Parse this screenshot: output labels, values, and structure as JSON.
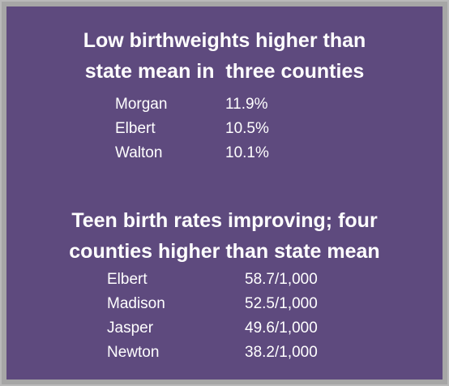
{
  "sections": [
    {
      "title_lines": [
        "Low birthweights higher than",
        "state mean in  three counties"
      ],
      "rows": [
        [
          "Morgan",
          "11.9%"
        ],
        [
          "Elbert",
          "10.5%"
        ],
        [
          "Walton",
          "10.1%"
        ]
      ]
    },
    {
      "title_lines": [
        "Teen birth rates improving; four",
        "counties higher than state mean"
      ],
      "rows": [
        [
          "Elbert",
          "58.7/1,000"
        ],
        [
          "Madison",
          "52.5/1,000"
        ],
        [
          "Jasper",
          "49.6/1,000"
        ],
        [
          "Newton",
          "38.2/1,000"
        ]
      ]
    }
  ]
}
